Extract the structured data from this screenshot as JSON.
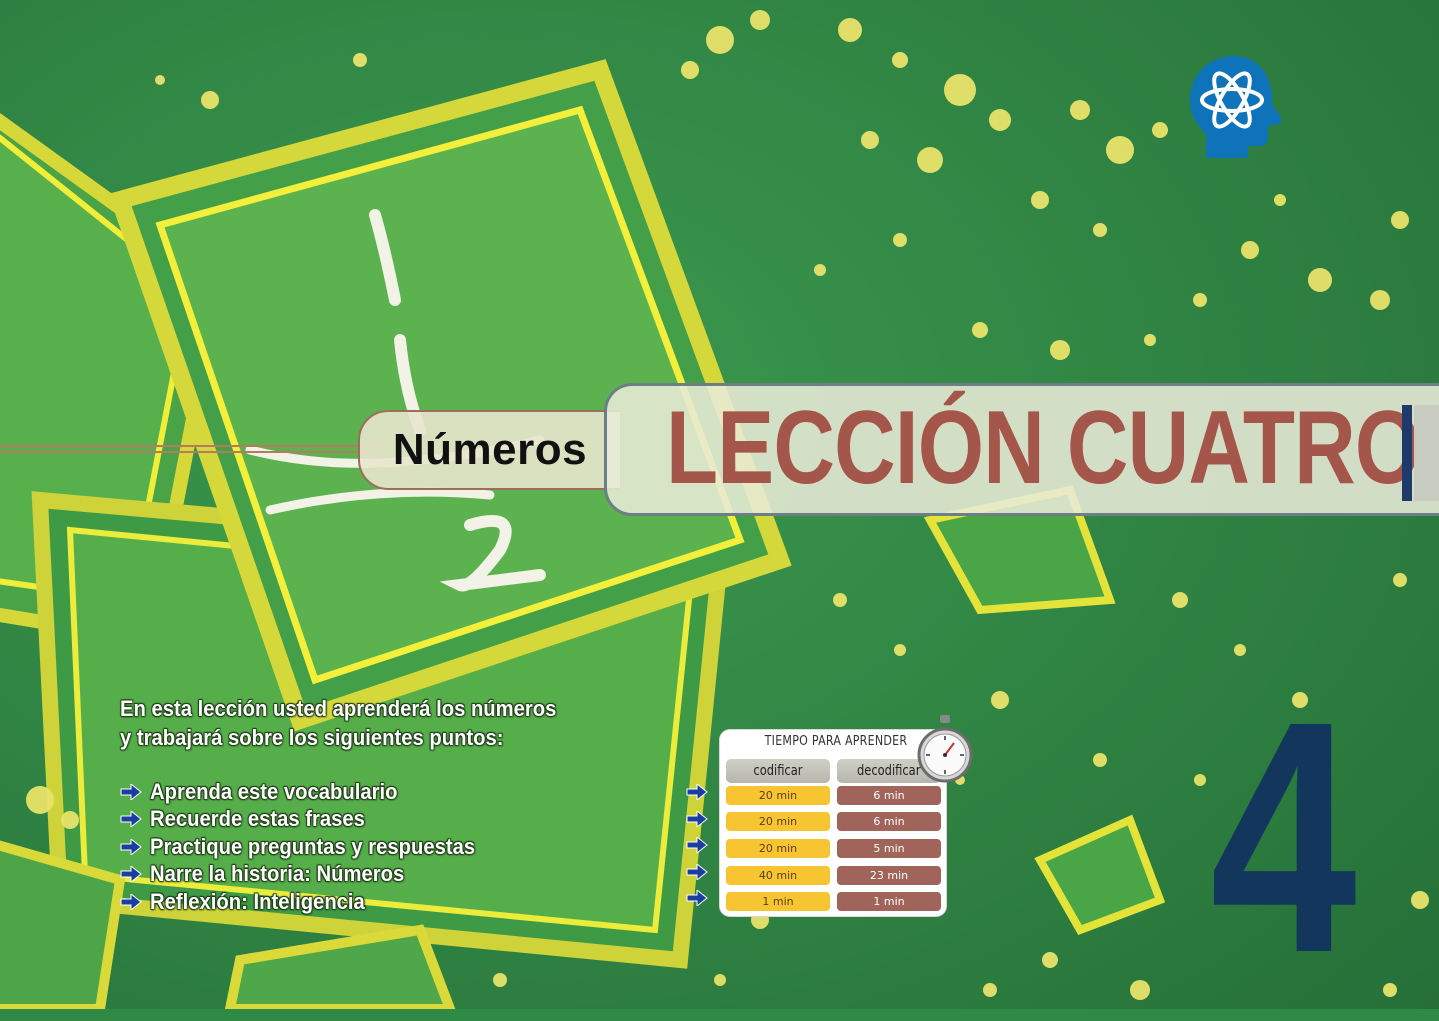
{
  "header": {
    "subtitle": "Números",
    "title": "LECCIÓN CUATRO",
    "icon": "brain-atom-icon"
  },
  "intro": {
    "line1": "En esta lección usted aprenderá los números",
    "line2": "y trabajará sobre los siguientes puntos:"
  },
  "bullets": [
    "Aprenda este vocabulario",
    "Recuerde estas frases",
    "Practique preguntas y respuestas",
    "Narre la historia: Números",
    "Reflexión: Inteligencia"
  ],
  "time_table": {
    "title": "TIEMPO PARA APRENDER",
    "col_encode": "codificar",
    "col_decode": "decodificar",
    "rows": [
      {
        "encode": "20 min",
        "decode": "6 min"
      },
      {
        "encode": "20 min",
        "decode": "6 min"
      },
      {
        "encode": "20 min",
        "decode": "5 min"
      },
      {
        "encode": "40 min",
        "decode": "23 min"
      },
      {
        "encode": "1 min",
        "decode": "1 min"
      }
    ]
  },
  "lesson_number": "4",
  "colors": {
    "background_green": "#2f8a45",
    "title_red": "#a5564a",
    "number_navy": "#13365c",
    "bullet_arrow_blue": "#1b3fa0"
  }
}
